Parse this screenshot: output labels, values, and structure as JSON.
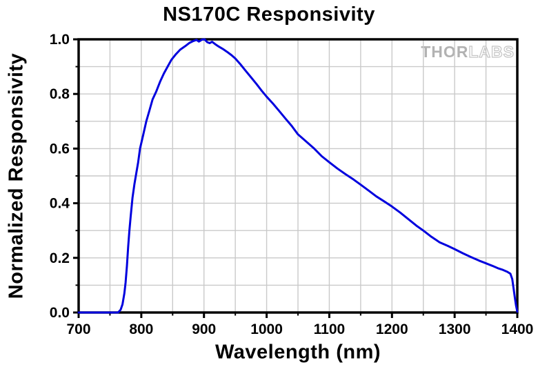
{
  "page": {
    "background": "#ffffff"
  },
  "chart_data": {
    "type": "line",
    "title": "NS170C Responsivity",
    "xlabel": "Wavelength (nm)",
    "ylabel": "Normalized Responsivity",
    "xlim": [
      700,
      1400
    ],
    "ylim": [
      0.0,
      1.0
    ],
    "x_major_tick_labels": [
      "700",
      "800",
      "900",
      "1000",
      "1100",
      "1200",
      "1300",
      "1400"
    ],
    "y_major_tick_labels": [
      "0.0",
      "0.2",
      "0.4",
      "0.6",
      "0.8",
      "1.0"
    ],
    "x_major_step": 100,
    "x_minor_step": 50,
    "y_major_step": 0.2,
    "y_minor_step": 0.1,
    "grid": {
      "show": true,
      "at": "every 50 nm and every 0.1",
      "color": "#c9c9c9"
    },
    "legend_position": "none",
    "watermark": {
      "part1": "THOR",
      "part2": "LABS"
    },
    "colors": {
      "line": "#0000DE",
      "frame": "#000000",
      "grid": "#c9c9c9",
      "watermark": "#b2b2b2",
      "background": "#ffffff"
    },
    "series": [
      {
        "name": "NS170C normalized responsivity",
        "points": [
          [
            700,
            0
          ],
          [
            730,
            0
          ],
          [
            755,
            0
          ],
          [
            763,
            0
          ],
          [
            767,
            0.01
          ],
          [
            770,
            0.03
          ],
          [
            773,
            0.07
          ],
          [
            775,
            0.11
          ],
          [
            777,
            0.17
          ],
          [
            779,
            0.24
          ],
          [
            781,
            0.3
          ],
          [
            783,
            0.35
          ],
          [
            786,
            0.42
          ],
          [
            789,
            0.47
          ],
          [
            792,
            0.51
          ],
          [
            795,
            0.55
          ],
          [
            798,
            0.6
          ],
          [
            803,
            0.65
          ],
          [
            808,
            0.7
          ],
          [
            813,
            0.74
          ],
          [
            818,
            0.78
          ],
          [
            824,
            0.81
          ],
          [
            830,
            0.845
          ],
          [
            836,
            0.875
          ],
          [
            842,
            0.9
          ],
          [
            848,
            0.925
          ],
          [
            855,
            0.945
          ],
          [
            862,
            0.962
          ],
          [
            870,
            0.975
          ],
          [
            877,
            0.987
          ],
          [
            883,
            0.994
          ],
          [
            888,
            0.998
          ],
          [
            892,
            0.992
          ],
          [
            897,
            0.999
          ],
          [
            901,
            1.0
          ],
          [
            905,
            0.99
          ],
          [
            909,
            0.986
          ],
          [
            913,
            0.991
          ],
          [
            918,
            0.982
          ],
          [
            924,
            0.973
          ],
          [
            930,
            0.965
          ],
          [
            937,
            0.954
          ],
          [
            944,
            0.942
          ],
          [
            950,
            0.93
          ],
          [
            958,
            0.909
          ],
          [
            966,
            0.886
          ],
          [
            975,
            0.861
          ],
          [
            984,
            0.836
          ],
          [
            992,
            0.812
          ],
          [
            1000,
            0.79
          ],
          [
            1010,
            0.765
          ],
          [
            1020,
            0.738
          ],
          [
            1030,
            0.71
          ],
          [
            1040,
            0.683
          ],
          [
            1050,
            0.652
          ],
          [
            1062,
            0.628
          ],
          [
            1075,
            0.602
          ],
          [
            1088,
            0.572
          ],
          [
            1100,
            0.55
          ],
          [
            1113,
            0.527
          ],
          [
            1126,
            0.506
          ],
          [
            1138,
            0.488
          ],
          [
            1150,
            0.468
          ],
          [
            1163,
            0.446
          ],
          [
            1175,
            0.425
          ],
          [
            1188,
            0.406
          ],
          [
            1200,
            0.388
          ],
          [
            1213,
            0.366
          ],
          [
            1226,
            0.342
          ],
          [
            1239,
            0.318
          ],
          [
            1250,
            0.3
          ],
          [
            1263,
            0.277
          ],
          [
            1276,
            0.257
          ],
          [
            1289,
            0.244
          ],
          [
            1300,
            0.232
          ],
          [
            1313,
            0.217
          ],
          [
            1326,
            0.203
          ],
          [
            1339,
            0.19
          ],
          [
            1350,
            0.18
          ],
          [
            1360,
            0.171
          ],
          [
            1369,
            0.162
          ],
          [
            1377,
            0.156
          ],
          [
            1384,
            0.149
          ],
          [
            1389,
            0.142
          ],
          [
            1392,
            0.122
          ],
          [
            1394,
            0.09
          ],
          [
            1396,
            0.055
          ],
          [
            1398,
            0.025
          ],
          [
            1400,
            0.003
          ]
        ]
      }
    ]
  }
}
